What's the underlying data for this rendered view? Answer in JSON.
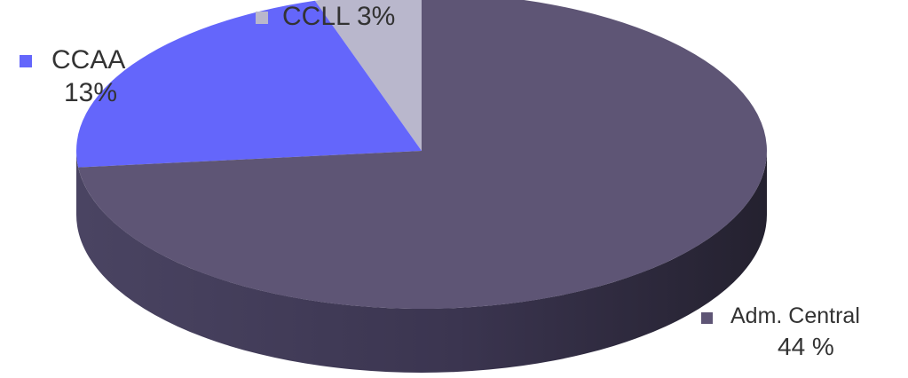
{
  "chart_data": {
    "type": "pie",
    "style": "3d",
    "legend_placement": "labels-adjacent-to-slices",
    "slices": [
      {
        "name": "Adm. Central",
        "value_label": "44 %",
        "value": 44,
        "color": "#5e5575",
        "side_color": "#3a3450"
      },
      {
        "name": "CCAA",
        "value_label": "13%",
        "value": 13,
        "color": "#6466fb",
        "side_color": "#4546c9"
      },
      {
        "name": "CCLL",
        "value_label": "3%",
        "value": 3,
        "color": "#b9b7cc",
        "side_color": "#9694ad"
      }
    ]
  }
}
